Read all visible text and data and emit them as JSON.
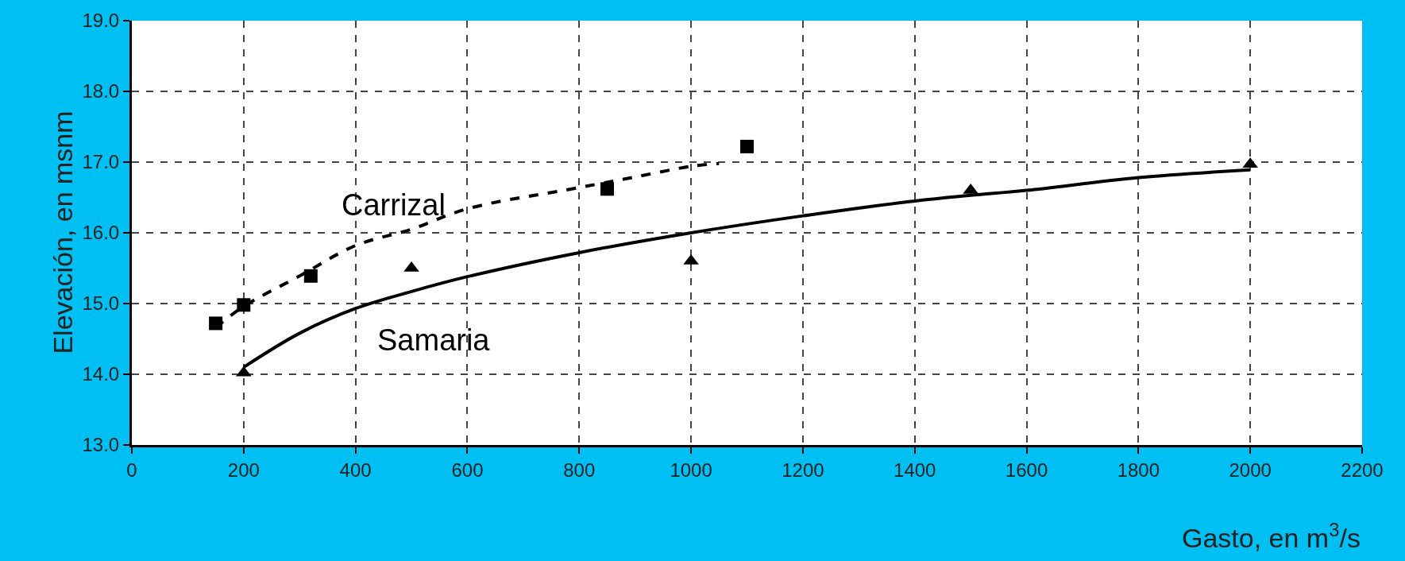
{
  "chart_data": {
    "type": "scatter",
    "xlabel": "Gasto, en m$^{3}$/s",
    "ylabel": "Elevación, en msnm",
    "xlim": [
      0,
      2200
    ],
    "xticks": [
      0,
      200,
      400,
      600,
      800,
      1000,
      1200,
      1400,
      1600,
      1800,
      2000,
      2200
    ],
    "ylim": [
      13,
      19
    ],
    "yticks": [
      {
        "value": 13,
        "label": "13.0"
      },
      {
        "value": 14,
        "label": "14.0"
      },
      {
        "value": 15,
        "label": "15.0"
      },
      {
        "value": 16,
        "label": "16.0"
      },
      {
        "value": 17,
        "label": "17.0"
      },
      {
        "value": 18,
        "label": "18.0"
      },
      {
        "value": 19,
        "label": "19.0"
      }
    ],
    "grid": true,
    "legend": false,
    "series": [
      {
        "marker": "square",
        "color": "#000000",
        "x": [
          150,
          200,
          320,
          850,
          1100
        ],
        "values": [
          14.72,
          14.98,
          15.39,
          16.62,
          17.22
        ]
      },
      {
        "type": "line",
        "name": "Carrizal",
        "marker": "none",
        "line_style": "dashed",
        "color": "#000000",
        "x": [
          150,
          200,
          300,
          400,
          500,
          600,
          800,
          900,
          1000,
          1050
        ],
        "values": [
          14.66,
          14.96,
          15.39,
          15.82,
          16.05,
          16.34,
          16.64,
          16.79,
          16.94,
          16.98
        ]
      },
      {
        "marker": "triangle",
        "color": "#000000",
        "x": [
          200,
          500,
          1000,
          1500,
          2000
        ],
        "values": [
          14.02,
          15.5,
          15.6,
          16.6,
          16.97
        ]
      },
      {
        "type": "line",
        "name": "Samaria",
        "marker": "none",
        "line_style": "solid",
        "color": "#000000",
        "x": [
          200,
          300,
          400,
          500,
          600,
          800,
          1000,
          1200,
          1400,
          1500,
          1600,
          1800,
          2000
        ],
        "values": [
          14.1,
          14.58,
          14.93,
          15.17,
          15.38,
          15.72,
          16.0,
          16.24,
          16.45,
          16.53,
          16.6,
          16.78,
          16.89
        ]
      }
    ]
  }
}
